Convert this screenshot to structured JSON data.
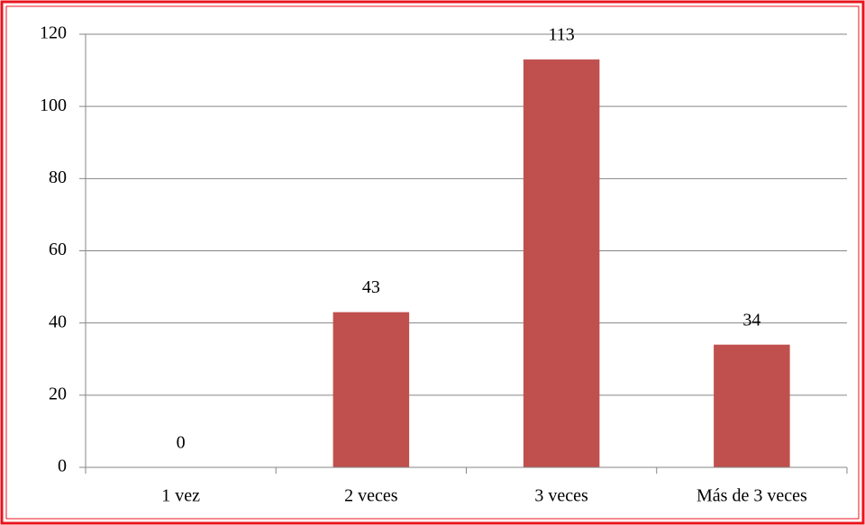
{
  "chart_data": {
    "type": "bar",
    "categories": [
      "1 vez",
      "2 veces",
      "3 veces",
      "Más de 3 veces"
    ],
    "values": [
      0,
      43,
      113,
      34
    ],
    "color": "#c0504d",
    "ylim": [
      0,
      120
    ],
    "yticks": [
      0,
      20,
      40,
      60,
      80,
      100,
      120
    ],
    "grid": true
  }
}
